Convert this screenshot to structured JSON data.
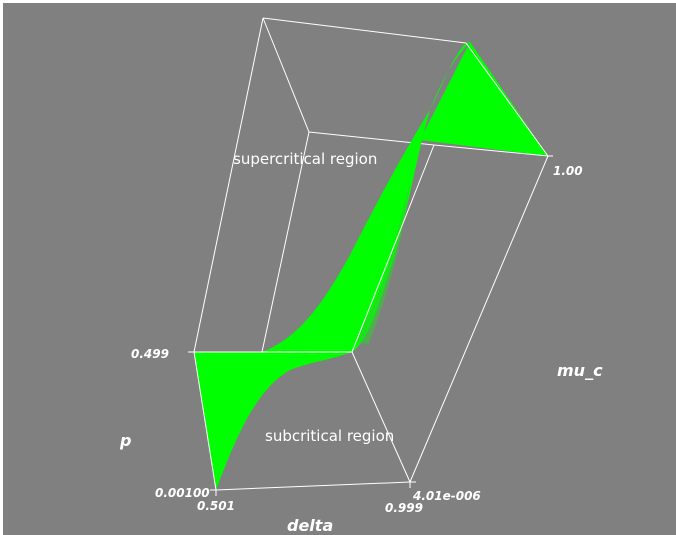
{
  "colors": {
    "background": "#808080",
    "surface": "#00ff00",
    "box_edges": "#ffffff",
    "text": "#ffffff"
  },
  "chart_data": {
    "type": "surface",
    "surface_color": "#00ff00",
    "axes": {
      "p": {
        "label": "p",
        "ticks": [
          "0.499",
          "0.00100"
        ],
        "range": [
          0.001,
          0.499
        ]
      },
      "delta": {
        "label": "delta",
        "ticks": [
          "0.501",
          "0.999"
        ],
        "range": [
          0.501,
          0.999
        ]
      },
      "mu_c": {
        "label": "mu_c",
        "ticks": [
          "4.01e-006",
          "1.00"
        ],
        "range": [
          4.01e-06,
          1.0
        ]
      }
    },
    "annotations": [
      "supercritical region",
      "subcritical region"
    ],
    "bounding_box": true
  }
}
